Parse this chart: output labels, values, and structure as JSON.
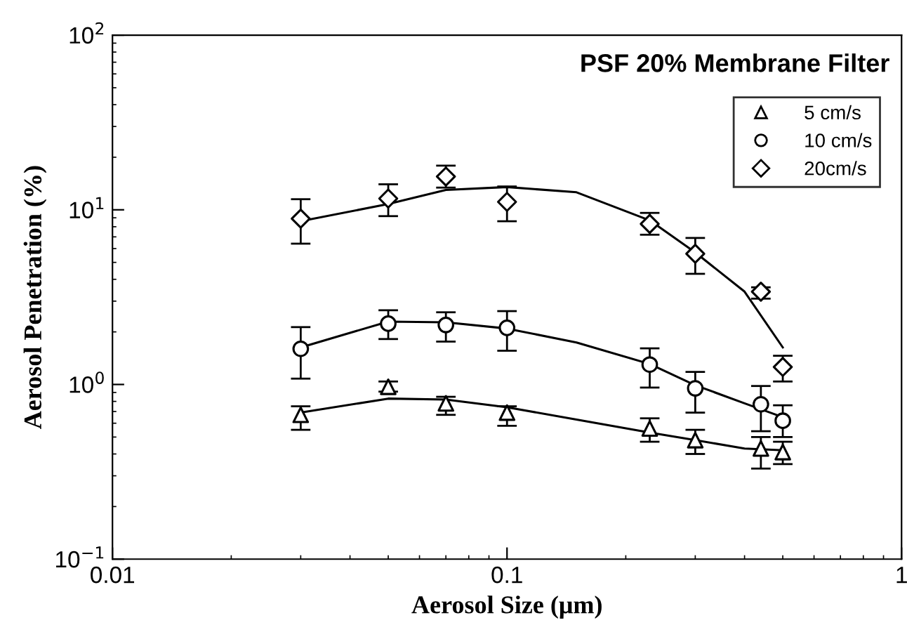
{
  "chart_data": {
    "type": "scatter",
    "title": "PSF 20% Membrane Filter",
    "xlabel": "Aerosol Size (μm)",
    "ylabel": "Aerosol Penetration (%)",
    "log": "xy",
    "xlim": [
      0.01,
      1
    ],
    "ylim": [
      0.1,
      100
    ],
    "xticks": [
      {
        "value": 0.01,
        "label": "0.01"
      },
      {
        "value": 0.1,
        "label": "0.1"
      },
      {
        "value": 1,
        "label": "1"
      }
    ],
    "yticks": [
      {
        "value": 0.1,
        "label": "10$^{−1}$"
      },
      {
        "value": 1,
        "label": "10$^{0}$"
      },
      {
        "value": 10,
        "label": "10$^{1}$"
      },
      {
        "value": 100,
        "label": "10$^{2}$"
      }
    ],
    "grid": false,
    "legend": "top right",
    "x": [
      0.03,
      0.05,
      0.07,
      0.1,
      0.23,
      0.3,
      0.44,
      0.5
    ],
    "series": [
      {
        "name": "5 cm/s",
        "color": "#000000",
        "marker": "triangle",
        "values": [
          0.67,
          0.97,
          0.78,
          0.69,
          0.56,
          0.48,
          0.43,
          0.41
        ],
        "errors": [
          [
            0.55,
            0.75
          ],
          [
            0.91,
            1.04
          ],
          [
            0.67,
            0.85
          ],
          [
            0.58,
            0.75
          ],
          [
            0.47,
            0.64
          ],
          [
            0.4,
            0.55
          ],
          [
            0.33,
            0.5
          ],
          [
            0.35,
            0.47
          ]
        ]
      },
      {
        "name": "10 cm/s",
        "color": "#000000",
        "marker": "circle",
        "values": [
          1.6,
          2.23,
          2.19,
          2.11,
          1.3,
          0.95,
          0.77,
          0.62
        ],
        "errors": [
          [
            1.08,
            2.13
          ],
          [
            1.82,
            2.66
          ],
          [
            1.76,
            2.59
          ],
          [
            1.56,
            2.63
          ],
          [
            0.96,
            1.61
          ],
          [
            0.69,
            1.18
          ],
          [
            0.54,
            0.98
          ],
          [
            0.5,
            0.76
          ]
        ]
      },
      {
        "name": "20cm/s",
        "color": "#000000",
        "marker": "diamond",
        "values": [
          8.9,
          11.6,
          15.5,
          11.1,
          8.3,
          5.6,
          3.4,
          1.26
        ],
        "errors": [
          [
            6.4,
            11.5
          ],
          [
            9.2,
            14
          ],
          [
            13.4,
            17.9
          ],
          [
            8.6,
            13.6
          ],
          [
            7.2,
            9.6
          ],
          [
            4.3,
            6.9
          ],
          [
            3.1,
            3.6
          ],
          [
            1.04,
            1.46
          ]
        ]
      },
      {
        "type": "line",
        "color": "#000000",
        "marker": "none",
        "x": [
          0.03,
          0.05,
          0.07,
          0.1,
          0.15,
          0.23,
          0.3,
          0.4,
          0.5
        ],
        "values": [
          0.69,
          0.83,
          0.82,
          0.74,
          0.63,
          0.53,
          0.48,
          0.43,
          0.42
        ]
      },
      {
        "type": "line",
        "color": "#000000",
        "marker": "none",
        "x": [
          0.03,
          0.05,
          0.07,
          0.1,
          0.15,
          0.23,
          0.3,
          0.4,
          0.5
        ],
        "values": [
          1.63,
          2.29,
          2.27,
          2.09,
          1.74,
          1.31,
          0.99,
          0.78,
          0.65
        ]
      },
      {
        "type": "line",
        "color": "#000000",
        "marker": "none",
        "x": [
          0.03,
          0.05,
          0.07,
          0.1,
          0.15,
          0.23,
          0.3,
          0.4,
          0.5
        ],
        "values": [
          8.6,
          10.8,
          13.0,
          13.5,
          12.6,
          8.7,
          5.7,
          3.4,
          1.63
        ]
      }
    ]
  }
}
